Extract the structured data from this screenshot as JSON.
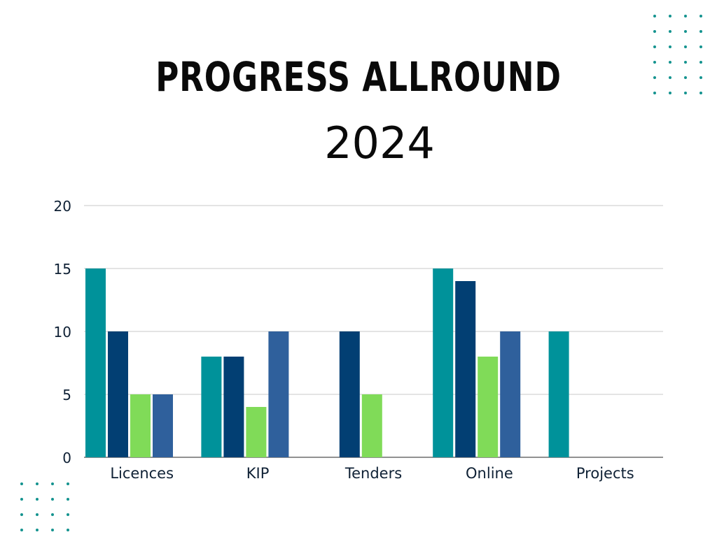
{
  "header": {
    "title": "PROGRESS ALLROUND",
    "subtitle": "2024"
  },
  "colors": {
    "teal": "#00929a",
    "navy": "#023f73",
    "green": "#80db58",
    "blue": "#2f609c",
    "grid": "#c9c9c9",
    "dots": "#14938f"
  },
  "chart_data": {
    "type": "bar",
    "categories": [
      "Licences",
      "KIP",
      "Tenders",
      "Online",
      "Projects"
    ],
    "series": [
      {
        "values": [
          15,
          8,
          0,
          15,
          10
        ],
        "color": "#00929a"
      },
      {
        "values": [
          10,
          8,
          10,
          14,
          0
        ],
        "color": "#023f73"
      },
      {
        "values": [
          5,
          4,
          5,
          8,
          0
        ],
        "color": "#80db58"
      },
      {
        "values": [
          5,
          10,
          0,
          10,
          0
        ],
        "color": "#2f609c"
      }
    ],
    "title": "",
    "xlabel": "",
    "ylabel": "",
    "ylim": [
      0,
      20
    ],
    "yticks": [
      "0",
      "5",
      "10",
      "15",
      "20"
    ],
    "grid": true,
    "legend": "none"
  }
}
